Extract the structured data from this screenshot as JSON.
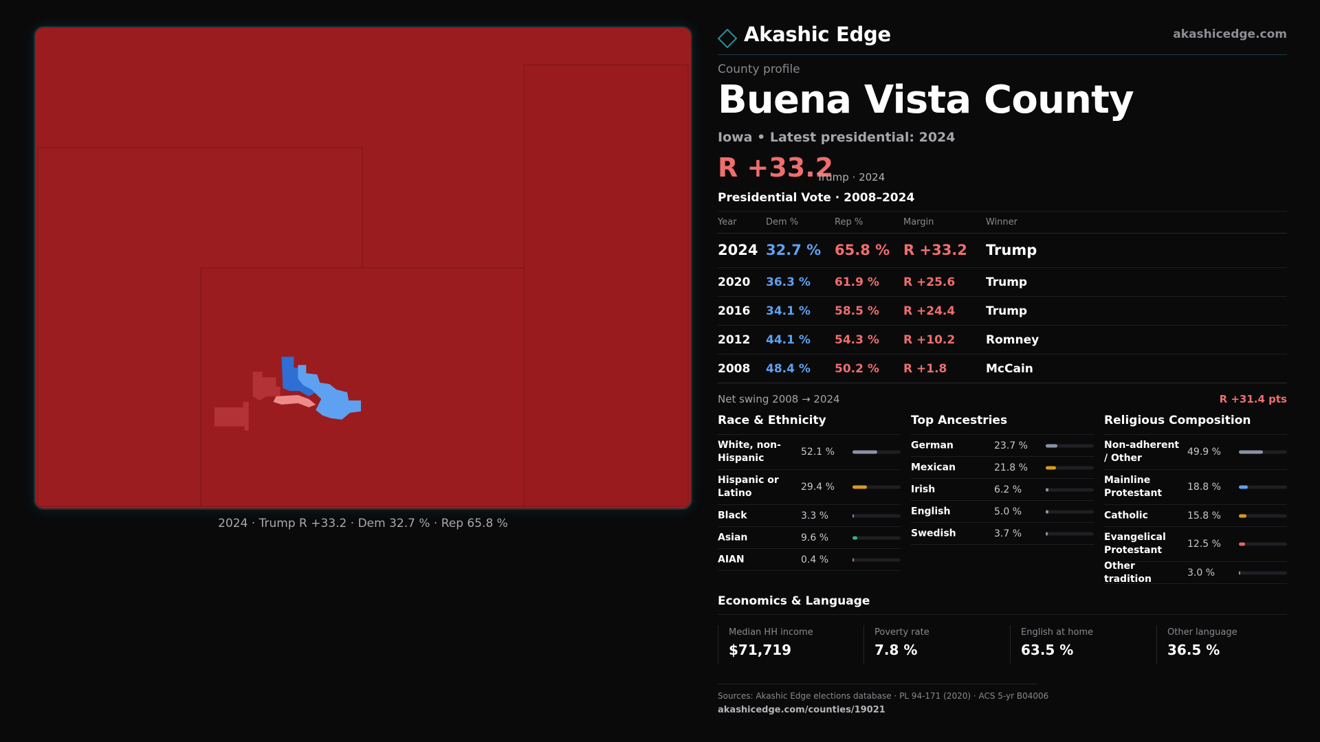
{
  "brand": {
    "name": "Akashic Edge",
    "url": "akashicedge.com"
  },
  "profile": {
    "kicker": "County profile",
    "county": "Buena Vista County",
    "subtitle": "Iowa • Latest presidential: 2024",
    "margin": "R +33.2",
    "margin_note": "Trump · 2024"
  },
  "map": {
    "caption": "2024 · Trump R +33.2 · Dem 32.7 % · Rep 65.8 %",
    "colors": {
      "strong_rep": "#9a1c1f",
      "rep": "#b33236",
      "lean_rep": "#ef8a8a",
      "dem": "#2f6fd3",
      "lean_dem": "#5ea1f0"
    }
  },
  "vote": {
    "heading": "Presidential Vote · 2008–2024",
    "columns": {
      "year": "Year",
      "dem": "Dem %",
      "rep": "Rep %",
      "margin": "Margin",
      "winner": "Winner"
    },
    "latest": {
      "year": "2024",
      "dem": "32.7 %",
      "rep": "65.8 %",
      "margin": "R +33.2",
      "winner": "Trump"
    },
    "history": [
      {
        "year": "2020",
        "dem": "36.3 %",
        "rep": "61.9 %",
        "margin": "R +25.6",
        "winner": "Trump"
      },
      {
        "year": "2016",
        "dem": "34.1 %",
        "rep": "58.5 %",
        "margin": "R +24.4",
        "winner": "Trump"
      },
      {
        "year": "2012",
        "dem": "44.1 %",
        "rep": "54.3 %",
        "margin": "R +10.2",
        "winner": "Romney"
      },
      {
        "year": "2008",
        "dem": "48.4 %",
        "rep": "50.2 %",
        "margin": "R +1.8",
        "winner": "McCain"
      }
    ],
    "swing_label": "Net swing 2008 → 2024",
    "swing_value": "R +31.4 pts"
  },
  "race": {
    "title": "Race & Ethnicity",
    "rows": [
      {
        "label": "White, non-Hispanic",
        "value": "52.1 %",
        "pct": 52.1,
        "color": "#8a93a6"
      },
      {
        "label": "Hispanic or Latino",
        "value": "29.4 %",
        "pct": 29.4,
        "color": "#d99a1e"
      },
      {
        "label": "Black",
        "value": "3.3 %",
        "pct": 3.3,
        "color": "#7b7fe0"
      },
      {
        "label": "Asian",
        "value": "9.6 %",
        "pct": 9.6,
        "color": "#2fb38a"
      },
      {
        "label": "AIAN",
        "value": "0.4 %",
        "pct": 0.4,
        "color": "#d97a3a"
      }
    ]
  },
  "ancestry": {
    "title": "Top Ancestries",
    "rows": [
      {
        "label": "German",
        "value": "23.7 %",
        "pct": 23.7,
        "color": "#8a93a6"
      },
      {
        "label": "Mexican",
        "value": "21.8 %",
        "pct": 21.8,
        "color": "#d99a1e"
      },
      {
        "label": "Irish",
        "value": "6.2 %",
        "pct": 6.2,
        "color": "#8a93a6"
      },
      {
        "label": "English",
        "value": "5.0 %",
        "pct": 5.0,
        "color": "#8a93a6"
      },
      {
        "label": "Swedish",
        "value": "3.7 %",
        "pct": 3.7,
        "color": "#8a93a6"
      }
    ]
  },
  "religion": {
    "title": "Religious Composition",
    "rows": [
      {
        "label": "Non-adherent / Other",
        "value": "49.9 %",
        "pct": 49.9,
        "color": "#8a93a6"
      },
      {
        "label": "Mainline Protestant",
        "value": "18.8 %",
        "pct": 18.8,
        "color": "#5ea1f0"
      },
      {
        "label": "Catholic",
        "value": "15.8 %",
        "pct": 15.8,
        "color": "#d99a1e"
      },
      {
        "label": "Evangelical Protestant",
        "value": "12.5 %",
        "pct": 12.5,
        "color": "#e06565"
      },
      {
        "label": "Other tradition",
        "value": "3.0 %",
        "pct": 3.0,
        "color": "#8a93a6"
      }
    ]
  },
  "economics": {
    "title": "Economics & Language",
    "cells": [
      {
        "label": "Median HH income",
        "value": "$71,719"
      },
      {
        "label": "Poverty rate",
        "value": "7.8 %"
      },
      {
        "label": "English at home",
        "value": "63.5 %"
      },
      {
        "label": "Other language",
        "value": "36.5 %"
      }
    ]
  },
  "sources": {
    "text": "Sources: Akashic Edge elections database · PL 94-171 (2020) · ACS 5-yr B04006",
    "url": "akashicedge.com/counties/19021"
  }
}
